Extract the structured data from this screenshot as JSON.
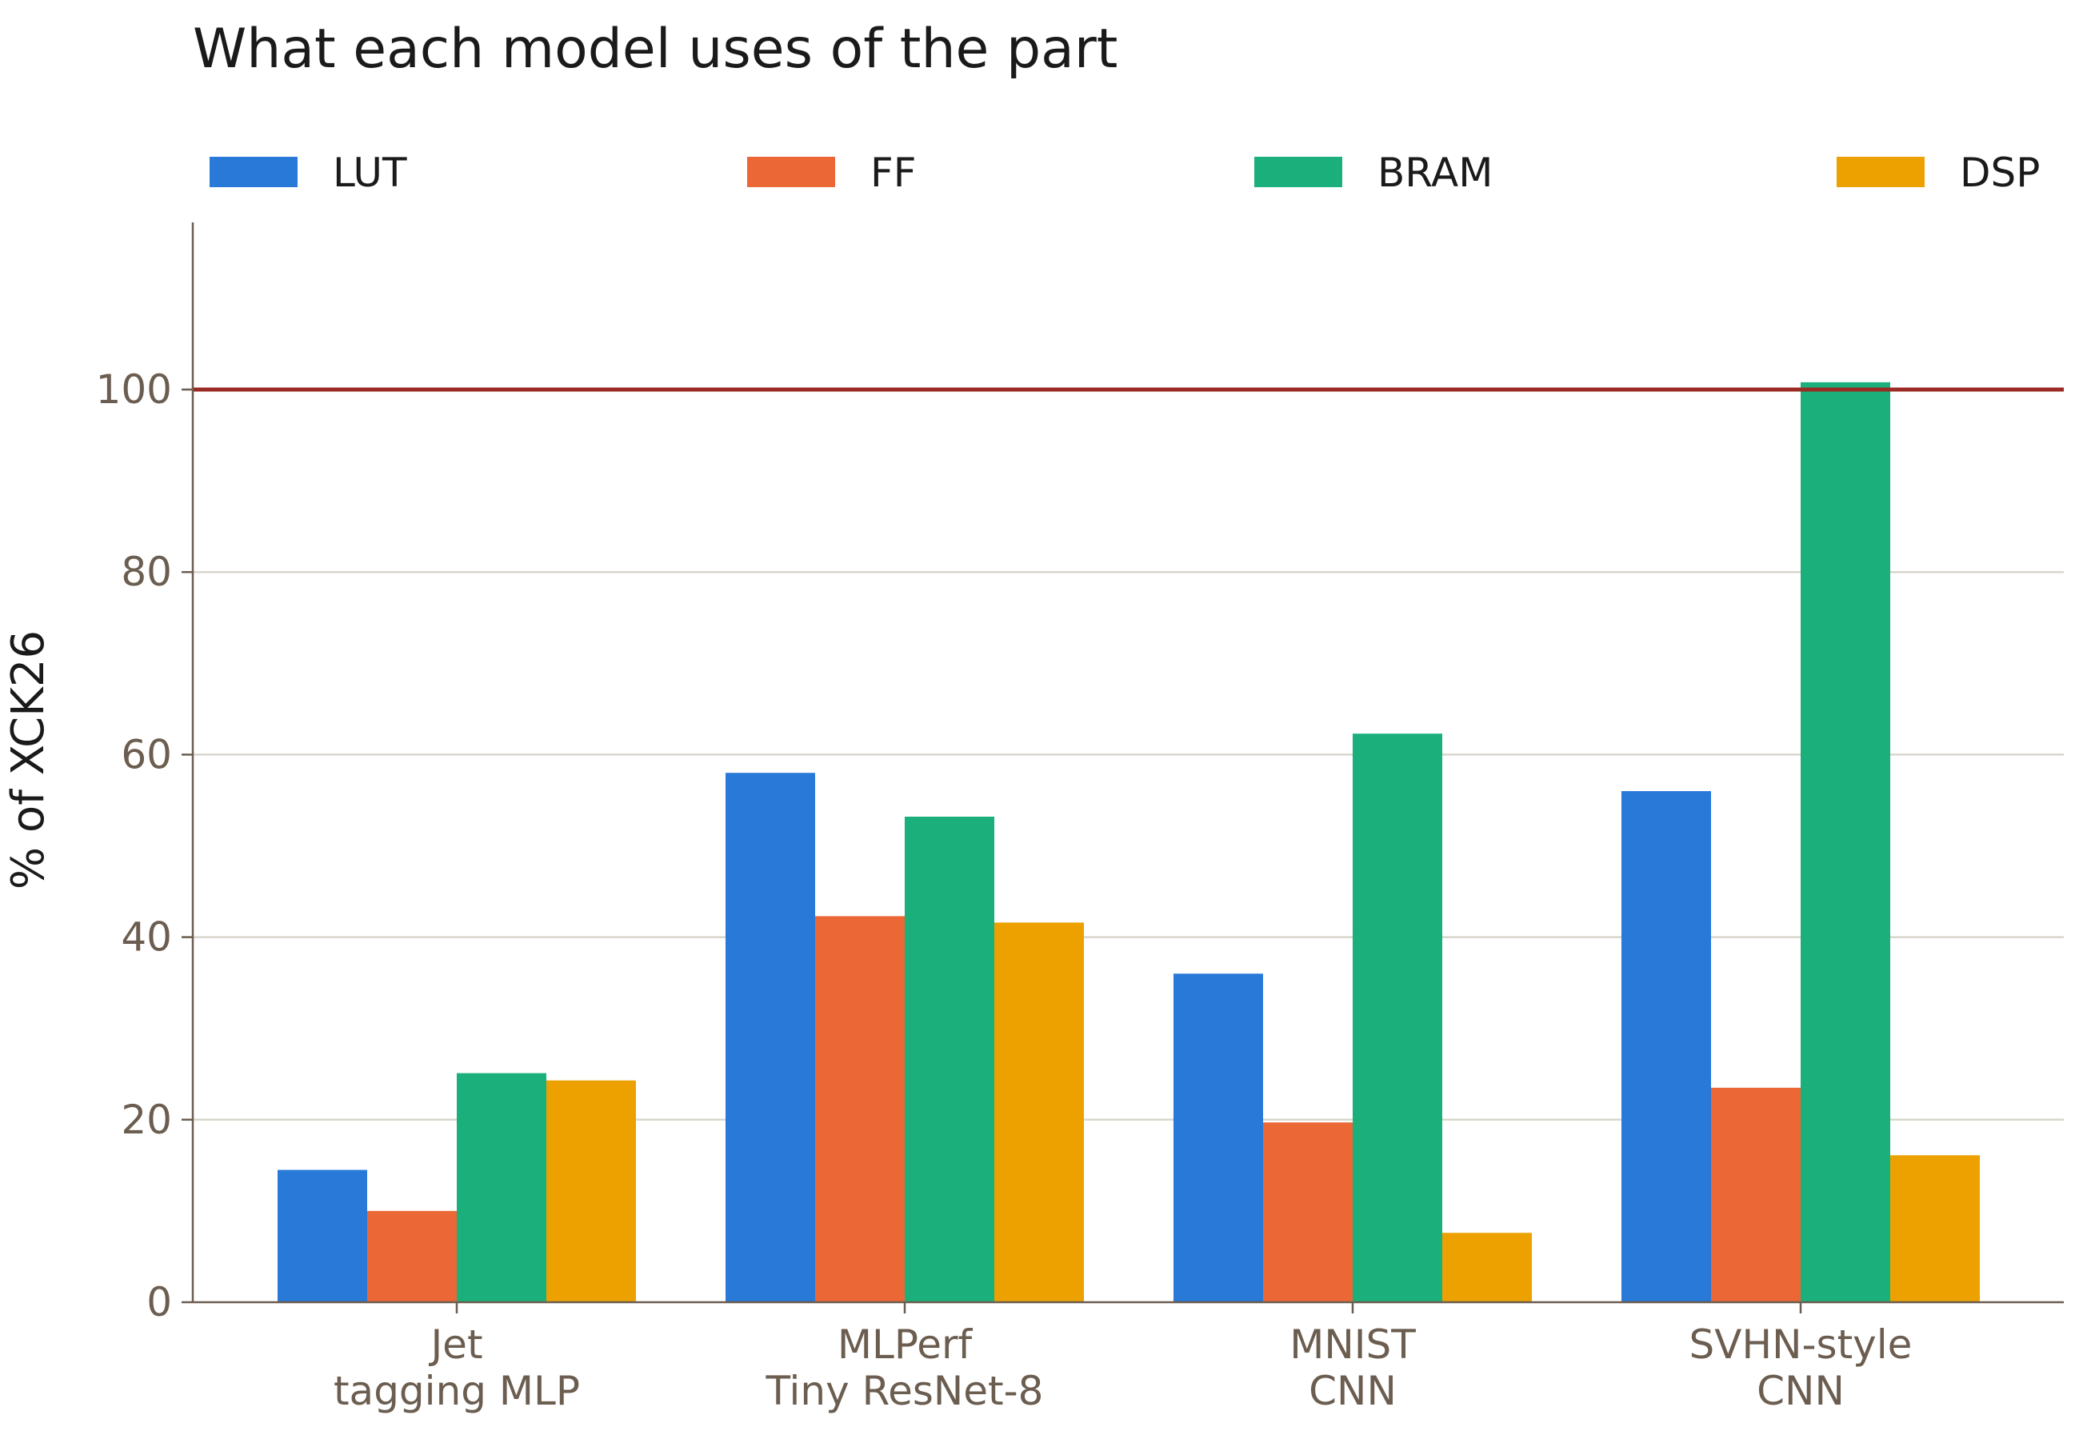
{
  "chart_data": {
    "type": "bar",
    "title": "What each model uses of the part",
    "xlabel": "",
    "ylabel": "% of XCK26",
    "ylim": [
      0,
      118
    ],
    "yticks": [
      "0",
      "20",
      "40",
      "60",
      "80",
      "100"
    ],
    "categories": [
      [
        "Jet",
        "tagging MLP"
      ],
      [
        "MLPerf",
        "Tiny ResNet-8"
      ],
      [
        "MNIST",
        "CNN"
      ],
      [
        "SVHN-style",
        "CNN"
      ]
    ],
    "series": [
      {
        "name": "LUT",
        "color": "#2979d8",
        "values": [
          14.5,
          58.0,
          36.0,
          56.0
        ]
      },
      {
        "name": "FF",
        "color": "#eb6836",
        "values": [
          10.0,
          42.3,
          19.7,
          23.5
        ]
      },
      {
        "name": "BRAM",
        "color": "#1bb07b",
        "values": [
          25.1,
          53.2,
          62.3,
          100.8
        ]
      },
      {
        "name": "DSP",
        "color": "#eca100",
        "values": [
          24.3,
          41.6,
          7.6,
          16.1
        ]
      }
    ],
    "reference_line": {
      "value": 100,
      "color": "#9a2a22"
    },
    "grid": true,
    "legend_position": "top",
    "colors": {
      "axis": "#6b5d4f",
      "grid": "#d8d6cc",
      "tick_text": "#6b5d4f"
    }
  }
}
